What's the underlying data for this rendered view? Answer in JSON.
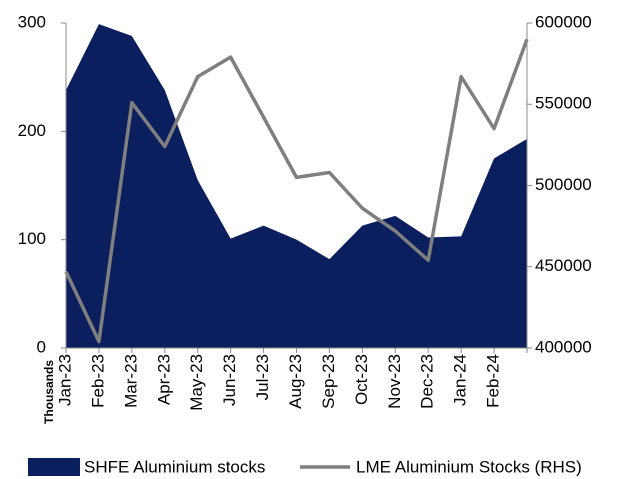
{
  "chart_data": {
    "type": "area-line",
    "categories": [
      "Jan-23",
      "Feb-23",
      "Mar-23",
      "Apr-23",
      "May-23",
      "Jun-23",
      "Jul-23",
      "Aug-23",
      "Sep-23",
      "Oct-23",
      "Nov-23",
      "Dec-23",
      "Jan-24",
      "Feb-24",
      null
    ],
    "series": [
      {
        "name": "SHFE Aluminium stocks",
        "color": "#0b1f5e",
        "type": "area",
        "axis": "y",
        "values": [
          238,
          299,
          288,
          238,
          155,
          101,
          113,
          100,
          82,
          113,
          122,
          102,
          103,
          175,
          193
        ]
      },
      {
        "name": "LME Aluminium Stocks (RHS)",
        "color": "#7f7f7f",
        "type": "line",
        "axis": "y2",
        "values": [
          447000,
          404000,
          551000,
          524000,
          567000,
          579000,
          542000,
          505000,
          508000,
          486000,
          472000,
          454000,
          567000,
          535000,
          590000
        ]
      }
    ],
    "ylabel": "Thousands",
    "ylim": [
      0,
      300
    ],
    "yticks": [
      0,
      100,
      200,
      300
    ],
    "y2lim": [
      400000,
      600000
    ],
    "y2ticks": [
      400000,
      450000,
      500000,
      550000,
      600000
    ],
    "legend": "bottom"
  }
}
